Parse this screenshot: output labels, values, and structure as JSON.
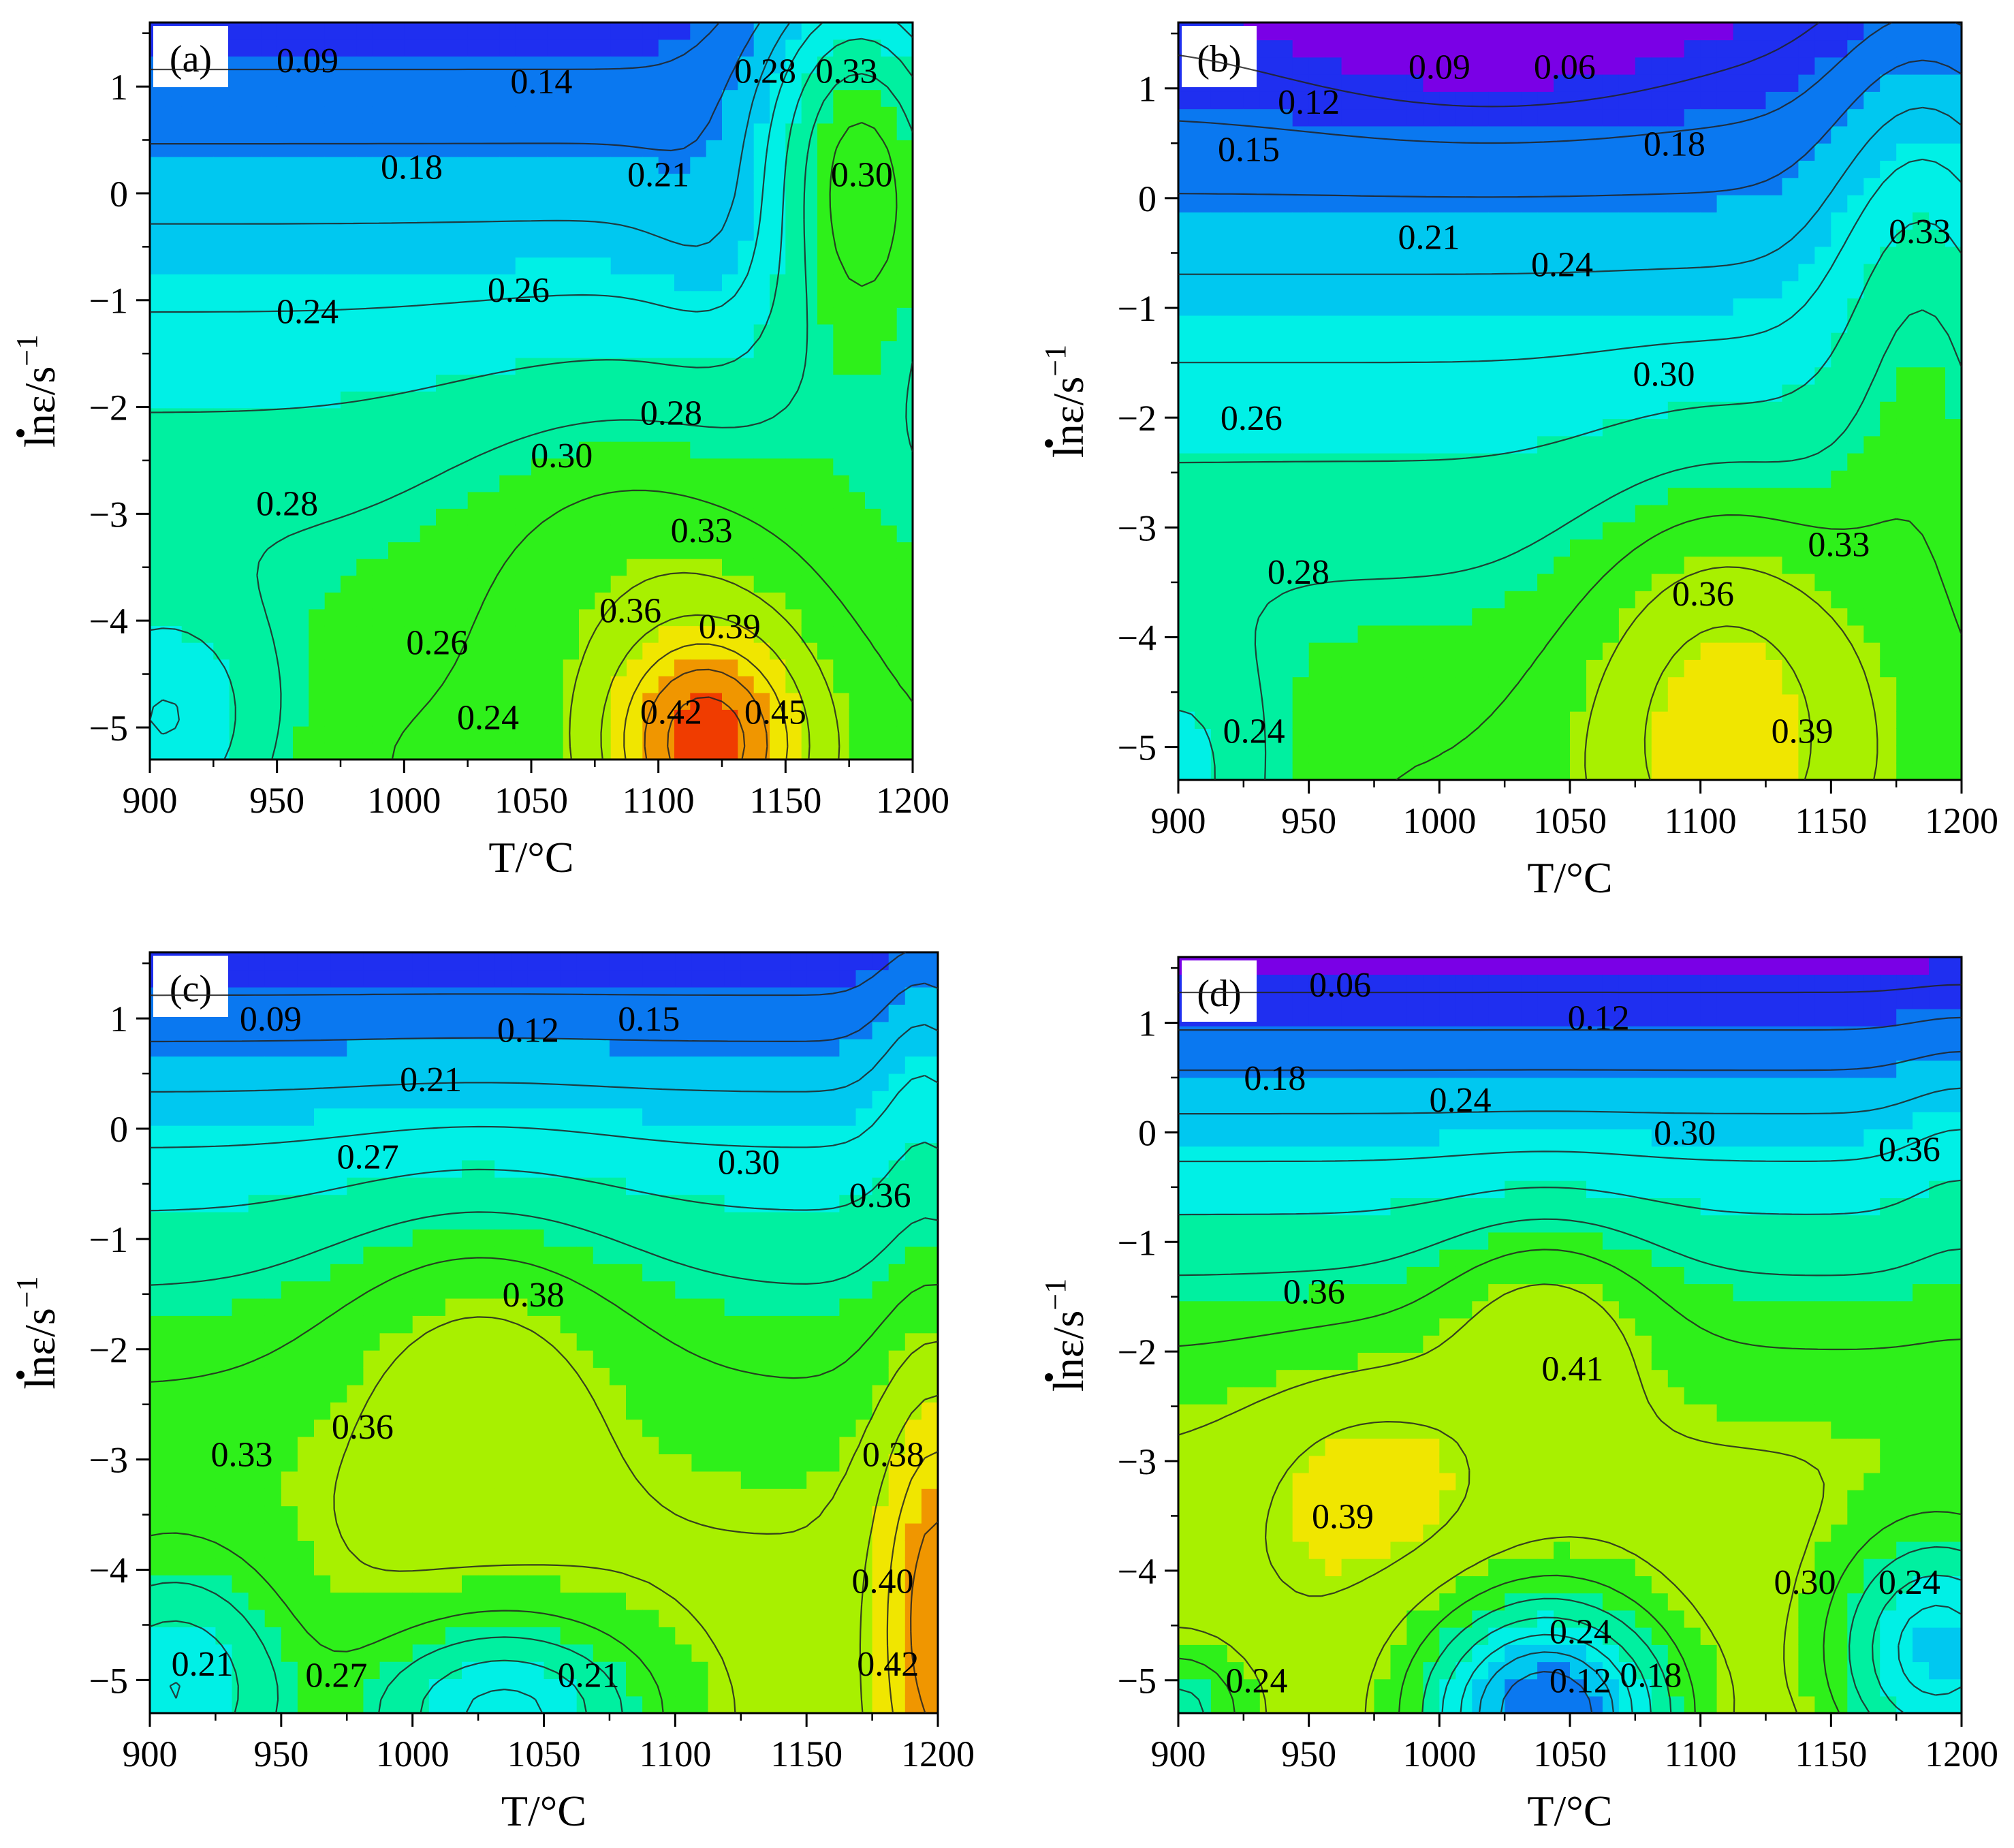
{
  "figure": {
    "xlabel": "T/°C",
    "ylabel_main": "lnε",
    "ylabel_unit": "/s",
    "ylabel_sup": "−1"
  },
  "colors": {
    "ramp": [
      "#7a00e6",
      "#1f2ff0",
      "#0a78f0",
      "#00c8f0",
      "#00f0e6",
      "#00f0a0",
      "#2ef01a",
      "#a8f000",
      "#f0e600",
      "#f09600",
      "#f03c00"
    ],
    "contour_line": "#222222",
    "axis": "#000000"
  },
  "chart_data": [
    {
      "type": "heatmap",
      "panel_label": "(a)",
      "xlabel": "T/°C",
      "ylabel": "lnε/s⁻¹",
      "xlim": [
        900,
        1200
      ],
      "ylim": [
        -5.3,
        1.6
      ],
      "xticks": [
        "900",
        "950",
        "1000",
        "1050",
        "1100",
        "1150",
        "1200"
      ],
      "yticks": [
        "1",
        "0",
        "−1",
        "−2",
        "−3",
        "−4",
        "−5"
      ],
      "contour_labels": [
        {
          "value": "0.09",
          "x": 962,
          "y": 1.25
        },
        {
          "value": "0.14",
          "x": 1054,
          "y": 1.05
        },
        {
          "value": "0.28",
          "x": 1142,
          "y": 1.15
        },
        {
          "value": "0.33",
          "x": 1174,
          "y": 1.15
        },
        {
          "value": "0.18",
          "x": 1003,
          "y": 0.25
        },
        {
          "value": "0.21",
          "x": 1100,
          "y": 0.18
        },
        {
          "value": "0.30",
          "x": 1180,
          "y": 0.18
        },
        {
          "value": "0.26",
          "x": 1045,
          "y": -0.9
        },
        {
          "value": "0.24",
          "x": 962,
          "y": -1.1
        },
        {
          "value": "0.28",
          "x": 1105,
          "y": -2.05
        },
        {
          "value": "0.30",
          "x": 1062,
          "y": -2.45
        },
        {
          "value": "0.28",
          "x": 954,
          "y": -2.9
        },
        {
          "value": "0.33",
          "x": 1117,
          "y": -3.15
        },
        {
          "value": "0.36",
          "x": 1089,
          "y": -3.9
        },
        {
          "value": "0.39",
          "x": 1128,
          "y": -4.05
        },
        {
          "value": "0.26",
          "x": 1013,
          "y": -4.2
        },
        {
          "value": "0.24",
          "x": 1033,
          "y": -4.9
        },
        {
          "value": "0.42",
          "x": 1105,
          "y": -4.85
        },
        {
          "value": "0.45",
          "x": 1146,
          "y": -4.85
        }
      ]
    },
    {
      "type": "heatmap",
      "panel_label": "(b)",
      "xlabel": "T/°C",
      "ylabel": "lnε/s⁻¹",
      "xlim": [
        900,
        1200
      ],
      "ylim": [
        -5.3,
        1.6
      ],
      "xticks": [
        "900",
        "950",
        "1000",
        "1050",
        "1100",
        "1150",
        "1200"
      ],
      "yticks": [
        "1",
        "0",
        "−1",
        "−2",
        "−3",
        "−4",
        "−5"
      ],
      "contour_labels": [
        {
          "value": "0.09",
          "x": 1000,
          "y": 1.2
        },
        {
          "value": "0.06",
          "x": 1048,
          "y": 1.2
        },
        {
          "value": "0.12",
          "x": 950,
          "y": 0.88
        },
        {
          "value": "0.15",
          "x": 927,
          "y": 0.45
        },
        {
          "value": "0.18",
          "x": 1090,
          "y": 0.5
        },
        {
          "value": "0.21",
          "x": 996,
          "y": -0.35
        },
        {
          "value": "0.24",
          "x": 1047,
          "y": -0.6
        },
        {
          "value": "0.33",
          "x": 1184,
          "y": -0.3
        },
        {
          "value": "0.30",
          "x": 1086,
          "y": -1.6
        },
        {
          "value": "0.26",
          "x": 928,
          "y": -2.0
        },
        {
          "value": "0.28",
          "x": 946,
          "y": -3.4
        },
        {
          "value": "0.33",
          "x": 1153,
          "y": -3.15
        },
        {
          "value": "0.36",
          "x": 1101,
          "y": -3.6
        },
        {
          "value": "0.39",
          "x": 1139,
          "y": -4.85
        },
        {
          "value": "0.24",
          "x": 929,
          "y": -4.85
        }
      ]
    },
    {
      "type": "heatmap",
      "panel_label": "(c)",
      "xlabel": "T/°C",
      "ylabel": "lnε/s⁻¹",
      "xlim": [
        900,
        1200
      ],
      "ylim": [
        -5.3,
        1.6
      ],
      "xticks": [
        "900",
        "950",
        "1000",
        "1050",
        "1100",
        "1150",
        "1200"
      ],
      "yticks": [
        "1",
        "0",
        "−1",
        "−2",
        "−3",
        "−4",
        "−5"
      ],
      "contour_labels": [
        {
          "value": "0.09",
          "x": 946,
          "y": 1.0
        },
        {
          "value": "0.12",
          "x": 1044,
          "y": 0.9
        },
        {
          "value": "0.15",
          "x": 1090,
          "y": 1.0
        },
        {
          "value": "0.21",
          "x": 1007,
          "y": 0.45
        },
        {
          "value": "0.27",
          "x": 983,
          "y": -0.25
        },
        {
          "value": "0.30",
          "x": 1128,
          "y": -0.3
        },
        {
          "value": "0.36",
          "x": 1178,
          "y": -0.6
        },
        {
          "value": "0.38",
          "x": 1046,
          "y": -1.5
        },
        {
          "value": "0.36",
          "x": 981,
          "y": -2.7
        },
        {
          "value": "0.33",
          "x": 935,
          "y": -2.95
        },
        {
          "value": "0.38",
          "x": 1183,
          "y": -2.95
        },
        {
          "value": "0.40",
          "x": 1179,
          "y": -4.1
        },
        {
          "value": "0.42",
          "x": 1181,
          "y": -4.85
        },
        {
          "value": "0.21",
          "x": 920,
          "y": -4.85
        },
        {
          "value": "0.27",
          "x": 971,
          "y": -4.95
        },
        {
          "value": "0.21",
          "x": 1067,
          "y": -4.95
        }
      ]
    },
    {
      "type": "heatmap",
      "panel_label": "(d)",
      "xlabel": "T/°C",
      "ylabel": "lnε/s⁻¹",
      "xlim": [
        900,
        1200
      ],
      "ylim": [
        -5.3,
        1.6
      ],
      "xticks": [
        "900",
        "950",
        "1000",
        "1050",
        "1100",
        "1150",
        "1200"
      ],
      "yticks": [
        "1",
        "0",
        "−1",
        "−2",
        "−3",
        "−4",
        "−5"
      ],
      "contour_labels": [
        {
          "value": "0.06",
          "x": 962,
          "y": 1.35
        },
        {
          "value": "0.12",
          "x": 1061,
          "y": 1.05
        },
        {
          "value": "0.18",
          "x": 937,
          "y": 0.5
        },
        {
          "value": "0.24",
          "x": 1008,
          "y": 0.3
        },
        {
          "value": "0.30",
          "x": 1094,
          "y": 0.0
        },
        {
          "value": "0.36",
          "x": 1180,
          "y": -0.15
        },
        {
          "value": "0.36",
          "x": 952,
          "y": -1.45
        },
        {
          "value": "0.41",
          "x": 1051,
          "y": -2.15
        },
        {
          "value": "0.39",
          "x": 963,
          "y": -3.5
        },
        {
          "value": "0.30",
          "x": 1140,
          "y": -4.1
        },
        {
          "value": "0.24",
          "x": 1180,
          "y": -4.1
        },
        {
          "value": "0.24",
          "x": 1054,
          "y": -4.55
        },
        {
          "value": "0.24",
          "x": 930,
          "y": -5.0
        },
        {
          "value": "0.12",
          "x": 1054,
          "y": -5.0
        },
        {
          "value": "0.18",
          "x": 1081,
          "y": -4.95
        }
      ]
    }
  ]
}
